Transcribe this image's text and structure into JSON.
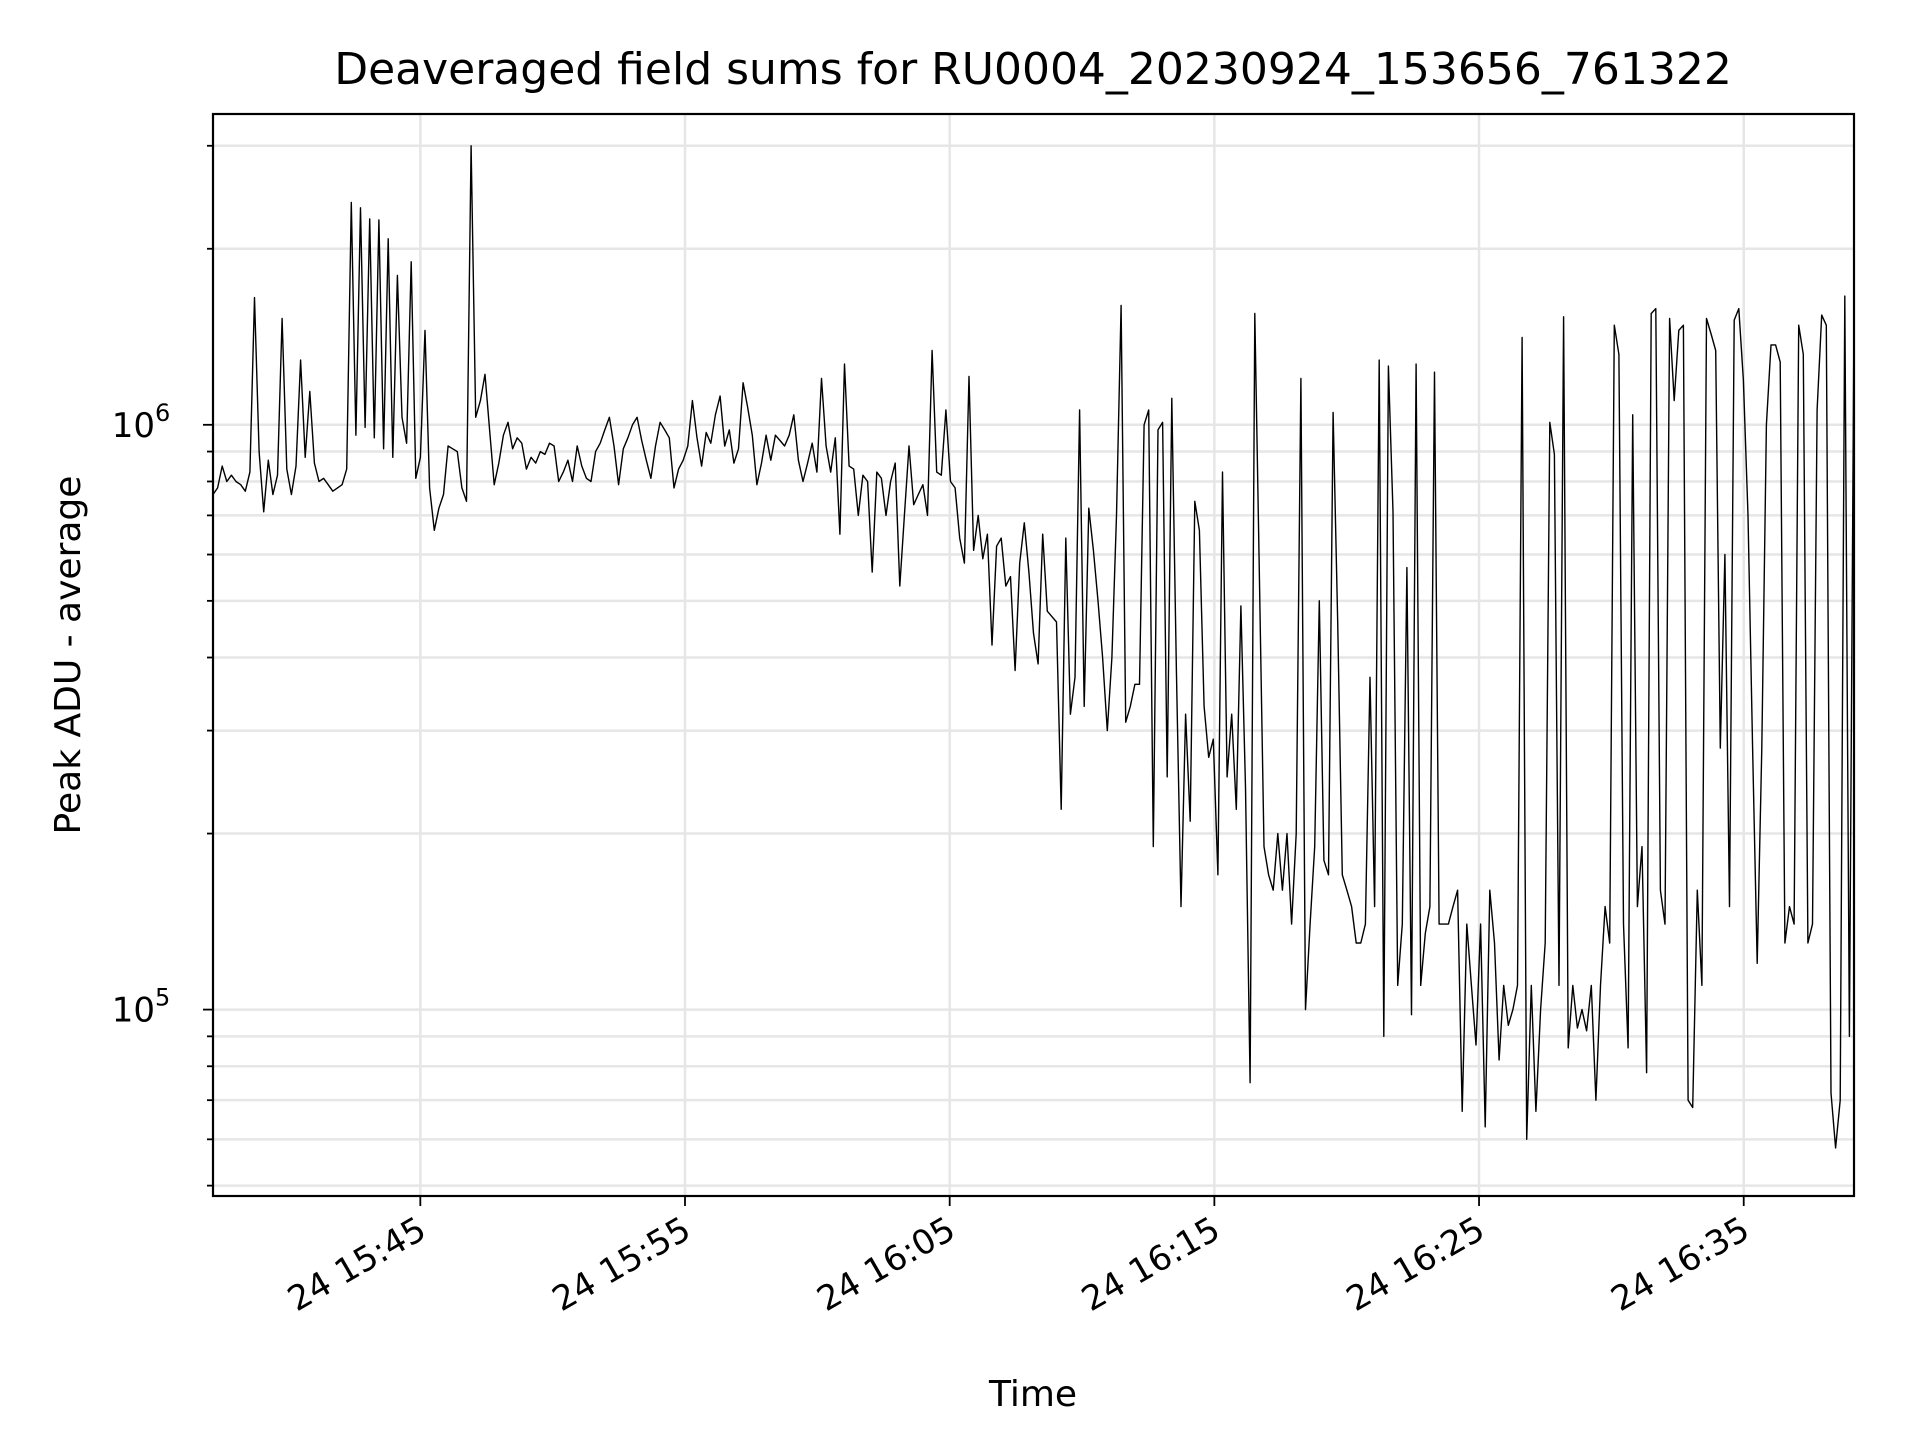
{
  "chart_data": {
    "type": "line",
    "title": "Deaveraged field sums for RU0004_20230924_153656_761322",
    "xlabel": "Time",
    "ylabel": "Peak ADU - average",
    "yscale": "log",
    "grid": true,
    "line_color": "#000000",
    "x_start": "2023-09-24 15:37:10",
    "x_end": "2023-09-24 16:39:10",
    "y_min": 48000,
    "y_max": 3400000,
    "x_ticks": [
      {
        "label": "24 15:45",
        "value": "2023-09-24 15:45"
      },
      {
        "label": "24 15:55",
        "value": "2023-09-24 15:55"
      },
      {
        "label": "24 16:05",
        "value": "2023-09-24 16:05"
      },
      {
        "label": "24 16:15",
        "value": "2023-09-24 16:15"
      },
      {
        "label": "24 16:25",
        "value": "2023-09-24 16:25"
      },
      {
        "label": "24 16:35",
        "value": "2023-09-24 16:35"
      }
    ],
    "y_ticks": [
      {
        "base": "10",
        "exp": "5",
        "value": 100000
      },
      {
        "base": "10",
        "exp": "6",
        "value": 1000000
      }
    ],
    "y": [
      760000,
      780000,
      850000,
      800000,
      820000,
      800000,
      790000,
      770000,
      830000,
      1650000,
      900000,
      710000,
      870000,
      760000,
      820000,
      1520000,
      840000,
      760000,
      850000,
      1290000,
      880000,
      1140000,
      860000,
      800000,
      810000,
      790000,
      770000,
      780000,
      790000,
      840000,
      2400000,
      960000,
      2350000,
      990000,
      2250000,
      950000,
      2240000,
      910000,
      2080000,
      880000,
      1800000,
      1030000,
      930000,
      1900000,
      810000,
      880000,
      1450000,
      780000,
      660000,
      720000,
      760000,
      920000,
      910000,
      900000,
      780000,
      740000,
      3000000,
      1030000,
      1100000,
      1220000,
      980000,
      790000,
      860000,
      960000,
      1010000,
      910000,
      950000,
      930000,
      840000,
      880000,
      860000,
      900000,
      890000,
      930000,
      920000,
      800000,
      830000,
      870000,
      800000,
      920000,
      850000,
      810000,
      800000,
      900000,
      930000,
      980000,
      1030000,
      920000,
      790000,
      910000,
      950000,
      1000000,
      1030000,
      940000,
      870000,
      810000,
      920000,
      1010000,
      980000,
      950000,
      780000,
      840000,
      870000,
      920000,
      1100000,
      950000,
      850000,
      970000,
      930000,
      1040000,
      1120000,
      920000,
      980000,
      860000,
      910000,
      1180000,
      1070000,
      960000,
      790000,
      860000,
      960000,
      870000,
      960000,
      940000,
      920000,
      960000,
      1040000,
      870000,
      800000,
      860000,
      930000,
      830000,
      1200000,
      920000,
      830000,
      950000,
      650000,
      1270000,
      850000,
      840000,
      700000,
      820000,
      800000,
      560000,
      830000,
      810000,
      700000,
      800000,
      860000,
      530000,
      700000,
      920000,
      730000,
      760000,
      790000,
      700000,
      1340000,
      830000,
      820000,
      1060000,
      800000,
      780000,
      640000,
      580000,
      1210000,
      610000,
      700000,
      590000,
      650000,
      420000,
      620000,
      640000,
      530000,
      550000,
      380000,
      580000,
      680000,
      560000,
      440000,
      390000,
      650000,
      480000,
      470000,
      460000,
      220000,
      640000,
      320000,
      370000,
      1060000,
      330000,
      720000,
      610000,
      500000,
      400000,
      300000,
      400000,
      700000,
      1600000,
      310000,
      330000,
      360000,
      360000,
      1000000,
      1060000,
      190000,
      980000,
      1010000,
      250000,
      1110000,
      380000,
      150000,
      320000,
      210000,
      740000,
      660000,
      330000,
      270000,
      290000,
      170000,
      830000,
      250000,
      320000,
      220000,
      490000,
      240000,
      75000,
      1550000,
      550000,
      190000,
      170000,
      160000,
      200000,
      160000,
      200000,
      140000,
      200000,
      1200000,
      100000,
      140000,
      190000,
      500000,
      180000,
      170000,
      1050000,
      460000,
      170000,
      160000,
      150000,
      130000,
      130000,
      140000,
      370000,
      150000,
      1290000,
      90000,
      1260000,
      710000,
      110000,
      140000,
      570000,
      98000,
      1270000,
      110000,
      135000,
      150000,
      1230000,
      140000,
      140000,
      140000,
      150000,
      160000,
      67000,
      140000,
      110000,
      87000,
      140000,
      63000,
      160000,
      130000,
      82000,
      110000,
      94000,
      100000,
      110000,
      1410000,
      60000,
      110000,
      67000,
      100000,
      130000,
      1010000,
      890000,
      110000,
      1530000,
      86000,
      110000,
      93000,
      100000,
      92000,
      110000,
      70000,
      110000,
      150000,
      130000,
      1480000,
      1320000,
      140000,
      86000,
      1040000,
      150000,
      190000,
      78000,
      1550000,
      1580000,
      160000,
      140000,
      1520000,
      1100000,
      1450000,
      1480000,
      70000,
      68000,
      160000,
      110000,
      1520000,
      1430000,
      1340000,
      280000,
      600000,
      150000,
      1510000,
      1580000,
      1190000,
      700000,
      280000,
      120000,
      280000,
      1000000,
      1370000,
      1370000,
      1280000,
      130000,
      150000,
      140000,
      1480000,
      1320000,
      130000,
      140000,
      1060000,
      1540000,
      1480000,
      72000,
      58000,
      70000,
      1660000,
      90000,
      1560000
    ]
  }
}
